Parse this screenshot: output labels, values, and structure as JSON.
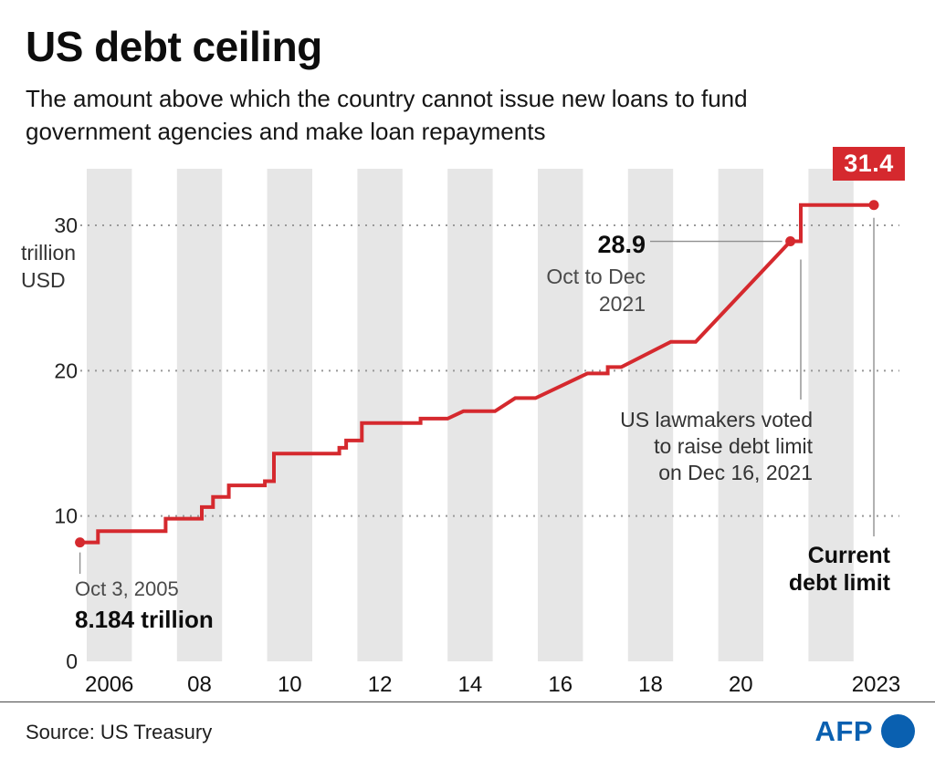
{
  "header": {
    "title": "US debt ceiling",
    "subtitle_line1": "The amount above which the country cannot issue new loans to fund",
    "subtitle_line2": "government agencies and make loan repayments"
  },
  "annotations": {
    "current_value_badge": "31.4",
    "point_289_value": "28.9",
    "point_289_date_line1": "Oct to Dec",
    "point_289_date_line2": "2021",
    "lawmakers_line1": "US lawmakers voted",
    "lawmakers_line2": "to raise debt limit",
    "lawmakers_line3": "on Dec 16, 2021",
    "current_limit_line1": "Current",
    "current_limit_line2": "debt limit",
    "start_date": "Oct 3, 2005",
    "start_value": "8.184 trillion"
  },
  "footer": {
    "source": "Source: US Treasury",
    "logo_text": "AFP"
  },
  "colors": {
    "line_red": "#d5292e",
    "stripe_gray": "#e6e6e6",
    "grid_gray": "#999999",
    "callout_gray": "#8f8f8f",
    "afp_blue": "#0a60b0"
  },
  "chart_data": {
    "type": "line",
    "title": "US debt ceiling",
    "subtitle": "The amount above which the country cannot issue new loans to fund government agencies and make loan repayments",
    "ylabel": "trillion USD",
    "ylabel_lines": [
      "trillion",
      "USD"
    ],
    "xlim": [
      2005.5,
      2024.0
    ],
    "ylim": [
      0,
      33.9
    ],
    "grid": "dotted horizontal gridlines at 10, 20, 30; alternating vertical year bands",
    "legend_position": "none",
    "x_ticks": [
      {
        "label": "2006",
        "year": 2006
      },
      {
        "label": "08",
        "year": 2008
      },
      {
        "label": "10",
        "year": 2010
      },
      {
        "label": "12",
        "year": 2012
      },
      {
        "label": "14",
        "year": 2014
      },
      {
        "label": "16",
        "year": 2016
      },
      {
        "label": "18",
        "year": 2018
      },
      {
        "label": "20",
        "year": 2020
      },
      {
        "label": "2023",
        "year": 2023
      }
    ],
    "y_ticks": [
      {
        "label": "0",
        "value": 0
      },
      {
        "label": "10",
        "value": 10
      },
      {
        "label": "20",
        "value": 20
      },
      {
        "label": "30",
        "value": 30
      }
    ],
    "stripe_years": [
      2006,
      2008,
      2010,
      2012,
      2014,
      2016,
      2018,
      2020,
      2022
    ],
    "series": [
      {
        "name": "US debt ceiling (trillion USD)",
        "points": [
          [
            2005.85,
            8.184
          ],
          [
            2006.25,
            8.184
          ],
          [
            2006.25,
            8.965
          ],
          [
            2007.75,
            8.965
          ],
          [
            2007.75,
            9.815
          ],
          [
            2008.55,
            9.815
          ],
          [
            2008.55,
            10.615
          ],
          [
            2008.8,
            10.615
          ],
          [
            2008.8,
            11.315
          ],
          [
            2009.15,
            11.315
          ],
          [
            2009.15,
            12.104
          ],
          [
            2009.95,
            12.104
          ],
          [
            2009.95,
            12.394
          ],
          [
            2010.15,
            12.394
          ],
          [
            2010.15,
            14.294
          ],
          [
            2011.6,
            14.294
          ],
          [
            2011.6,
            14.694
          ],
          [
            2011.75,
            14.694
          ],
          [
            2011.75,
            15.194
          ],
          [
            2012.1,
            15.194
          ],
          [
            2012.1,
            16.394
          ],
          [
            2013.4,
            16.394
          ],
          [
            2013.4,
            16.699
          ],
          [
            2014.0,
            16.699
          ],
          [
            2014.35,
            17.212
          ],
          [
            2015.05,
            17.212
          ],
          [
            2015.5,
            18.113
          ],
          [
            2015.95,
            18.113
          ],
          [
            2017.1,
            19.809
          ],
          [
            2017.55,
            19.809
          ],
          [
            2017.55,
            20.25
          ],
          [
            2017.85,
            20.25
          ],
          [
            2018.95,
            21.988
          ],
          [
            2019.5,
            21.988
          ],
          [
            2021.45,
            28.4
          ],
          [
            2021.6,
            28.9
          ],
          [
            2021.83,
            28.9
          ],
          [
            2021.83,
            31.4
          ],
          [
            2023.45,
            31.4
          ]
        ]
      }
    ],
    "markers": [
      {
        "year": 2005.85,
        "value": 8.184,
        "label": "Oct 3, 2005 — 8.184 trillion"
      },
      {
        "year": 2021.6,
        "value": 28.9,
        "label": "Oct to Dec 2021 — 28.9"
      },
      {
        "year": 2023.45,
        "value": 31.4,
        "label": "Current debt limit — 31.4"
      }
    ]
  }
}
